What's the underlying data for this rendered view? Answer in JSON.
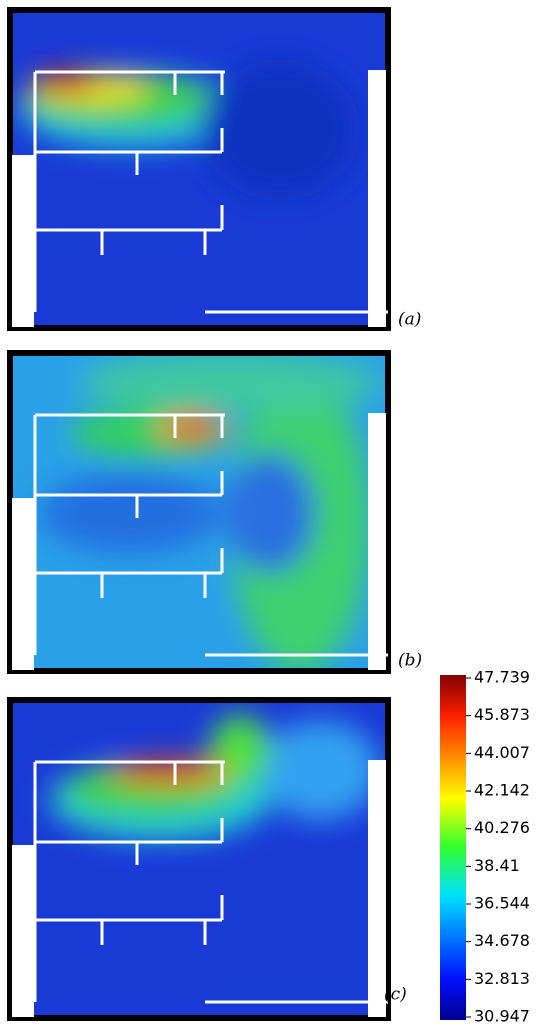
{
  "panels": [
    {
      "label": "(a)"
    },
    {
      "label": "(b)"
    },
    {
      "label": "(c)"
    }
  ],
  "colorbar": {
    "range": [
      30.947,
      47.739
    ],
    "ticks": [
      47.739,
      45.873,
      44.007,
      42.142,
      40.276,
      38.41,
      36.544,
      34.678,
      32.813,
      30.947
    ]
  }
}
